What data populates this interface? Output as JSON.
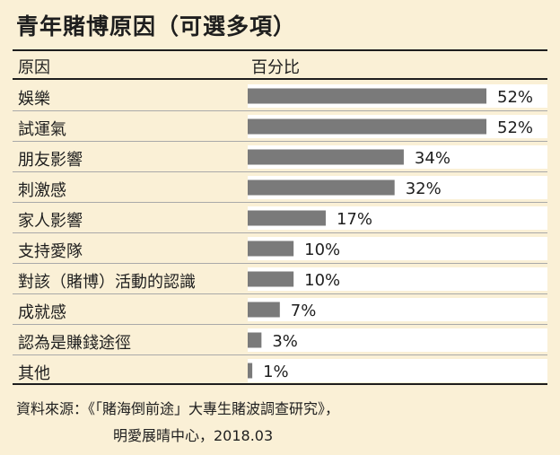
{
  "title": "青年賭博原因（可選多項）",
  "header": {
    "reason_label": "原因",
    "percent_label": "百分比"
  },
  "chart_data": {
    "type": "bar",
    "orientation": "horizontal",
    "categories": [
      "娛樂",
      "試運氣",
      "朋友影響",
      "刺激感",
      "家人影響",
      "支持愛隊",
      "對該（賭博）活動的認識",
      "成就感",
      "認為是賺錢途徑",
      "其他"
    ],
    "values": [
      52,
      52,
      34,
      32,
      17,
      10,
      10,
      7,
      3,
      1
    ],
    "value_labels": [
      "52%",
      "52%",
      "34%",
      "32%",
      "17%",
      "10%",
      "10%",
      "7%",
      "3%",
      "1%"
    ],
    "xlim": [
      0,
      52
    ],
    "bar_color": "#7a7a7a",
    "grid": false
  },
  "source": {
    "line1": "資料來源：《「賭海倒前途」大專生賭波調查研究》，",
    "line2": "明愛展晴中心，2018.03"
  }
}
